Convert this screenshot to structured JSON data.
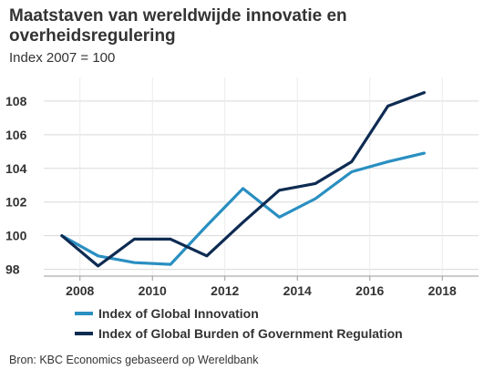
{
  "header": {
    "title": "Maatstaven van wereldwijde innovatie en overheidsregulering",
    "subtitle": "Index 2007 = 100"
  },
  "source": "Bron: KBC Economics gebaseerd op Wereldbank",
  "chart_data": {
    "type": "line",
    "title": "Maatstaven van wereldwijde innovatie en overheidsregulering",
    "subtitle": "Index 2007 = 100",
    "xlabel": "",
    "ylabel": "",
    "x": [
      2007.5,
      2008.5,
      2009.5,
      2010.5,
      2011.5,
      2012.5,
      2013.5,
      2014.5,
      2015.5,
      2016.5,
      2017.5
    ],
    "xlim": [
      2007,
      2019
    ],
    "ylim": [
      97.6,
      109.4
    ],
    "x_ticks": [
      2008,
      2010,
      2012,
      2014,
      2016,
      2018
    ],
    "y_ticks": [
      98,
      100,
      102,
      104,
      106,
      108
    ],
    "grid": "horizontal",
    "legend_position": "bottom",
    "series": [
      {
        "name": "Index of Global Innovation",
        "color": "#2a8fc1",
        "values": [
          100.0,
          98.8,
          98.4,
          98.3,
          100.6,
          102.8,
          101.1,
          102.2,
          103.8,
          104.4,
          104.9
        ]
      },
      {
        "name": "Index of Global Burden of Government Regulation",
        "color": "#0e2b52",
        "values": [
          100.0,
          98.2,
          99.8,
          99.8,
          98.8,
          100.8,
          102.7,
          103.1,
          104.4,
          107.7,
          108.5
        ]
      }
    ]
  }
}
